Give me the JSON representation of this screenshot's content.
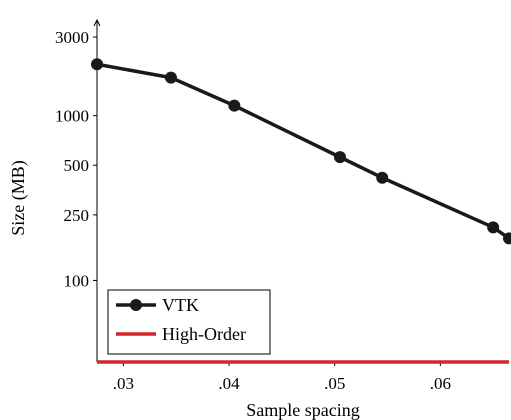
{
  "chart_data": {
    "type": "line",
    "xlabel": "Sample spacing",
    "ylabel": "Size (MB)",
    "x_scale": "linear",
    "y_scale": "log",
    "xlim": [
      0.0275,
      0.0665
    ],
    "ylim": [
      32,
      3000
    ],
    "x_ticks": [
      {
        "value": 0.03,
        "label": ".03"
      },
      {
        "value": 0.04,
        "label": ".04"
      },
      {
        "value": 0.05,
        "label": ".05"
      },
      {
        "value": 0.06,
        "label": ".06"
      }
    ],
    "y_ticks": [
      {
        "value": 3000,
        "label": "3000"
      },
      {
        "value": 1000,
        "label": "1000"
      },
      {
        "value": 500,
        "label": "500"
      },
      {
        "value": 250,
        "label": "250"
      },
      {
        "value": 100,
        "label": "100"
      }
    ],
    "series": [
      {
        "name": "VTK",
        "color": "#1a1a1a",
        "marker": "circle",
        "x": [
          0.0275,
          0.0345,
          0.0405,
          0.0505,
          0.0545,
          0.065,
          0.0665
        ],
        "y": [
          2050,
          1700,
          1150,
          560,
          420,
          210,
          180
        ]
      },
      {
        "name": "High-Order",
        "color": "#d62728",
        "marker": "none",
        "x": [
          0.0275,
          0.0665
        ],
        "y": [
          32,
          32
        ]
      }
    ],
    "legend": "bottom-left",
    "grid": false
  }
}
